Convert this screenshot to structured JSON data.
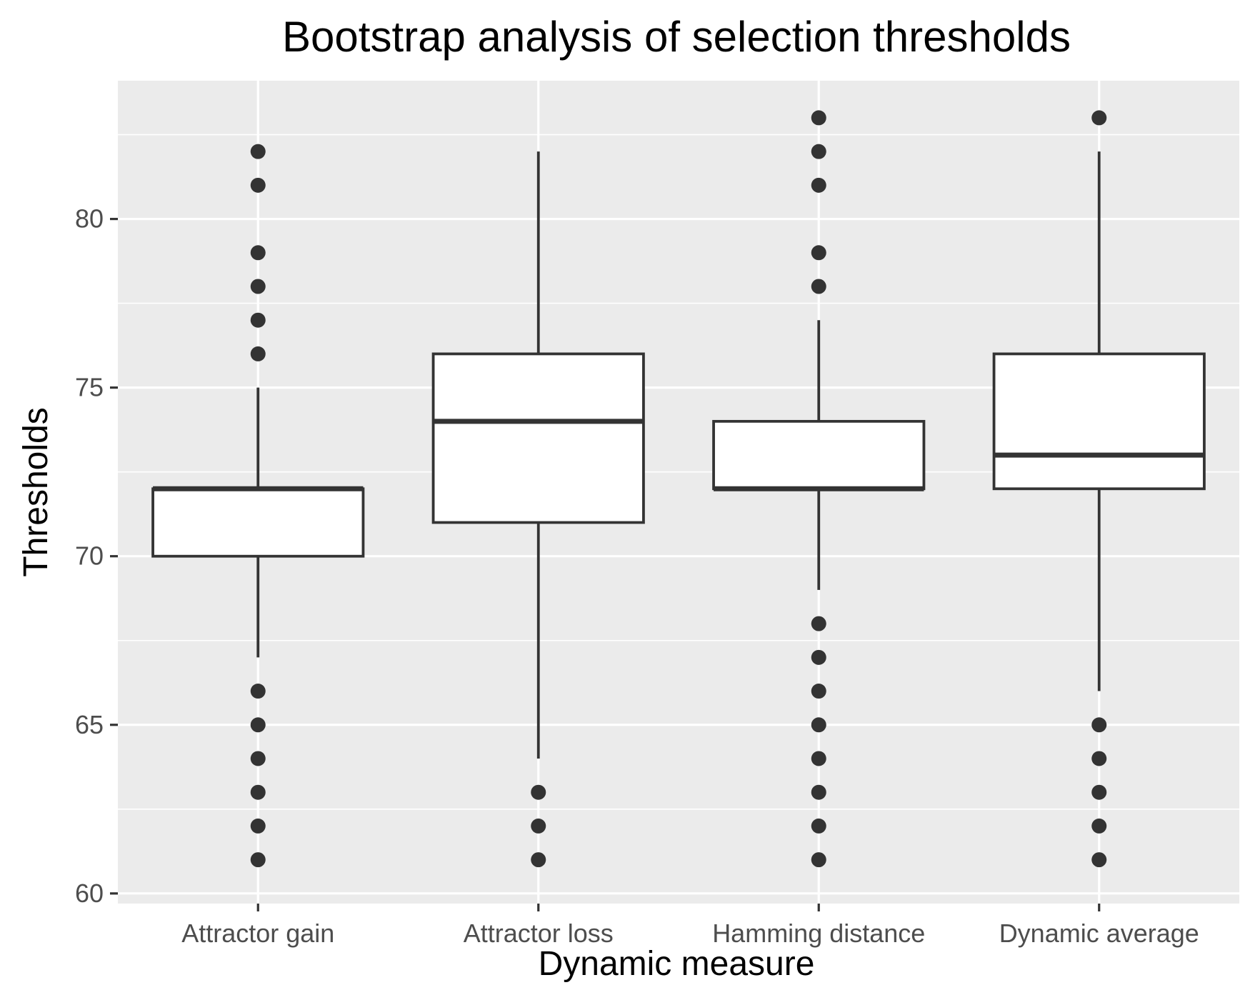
{
  "chart_data": {
    "type": "boxplot",
    "title": "Bootstrap analysis of selection thresholds",
    "xlabel": "Dynamic measure",
    "ylabel": "Thresholds",
    "ylim": [
      59.7,
      84.1
    ],
    "y_ticks": [
      60,
      65,
      70,
      75,
      80
    ],
    "y_minor_ticks": [
      62.5,
      67.5,
      72.5,
      77.5,
      82.5
    ],
    "grid": true,
    "categories": [
      "Attractor gain",
      "Attractor loss",
      "Hamming distance",
      "Dynamic average"
    ],
    "boxes": [
      {
        "category": "Attractor gain",
        "whisker_low": 67,
        "q1": 70,
        "median": 72,
        "q3": 72,
        "whisker_high": 75,
        "outliers": [
          61,
          62,
          63,
          64,
          65,
          66,
          76,
          77,
          78,
          79,
          81,
          82
        ]
      },
      {
        "category": "Attractor loss",
        "whisker_low": 64,
        "q1": 71,
        "median": 74,
        "q3": 76,
        "whisker_high": 82,
        "outliers": [
          61,
          62,
          63
        ]
      },
      {
        "category": "Hamming distance",
        "whisker_low": 69,
        "q1": 72,
        "median": 72,
        "q3": 74,
        "whisker_high": 77,
        "outliers": [
          61,
          62,
          63,
          64,
          65,
          66,
          67,
          68,
          78,
          79,
          81,
          82,
          83
        ]
      },
      {
        "category": "Dynamic average",
        "whisker_low": 66,
        "q1": 72,
        "median": 73,
        "q3": 76,
        "whisker_high": 82,
        "outliers": [
          61,
          62,
          63,
          64,
          65,
          83
        ]
      }
    ],
    "colors": {
      "panel_background": "#ebebeb",
      "grid": "#ffffff",
      "box_fill": "#ffffff",
      "box_line": "#333333",
      "outlier": "#333333",
      "tick": "#333333",
      "tick_label": "#4d4d4d"
    }
  }
}
